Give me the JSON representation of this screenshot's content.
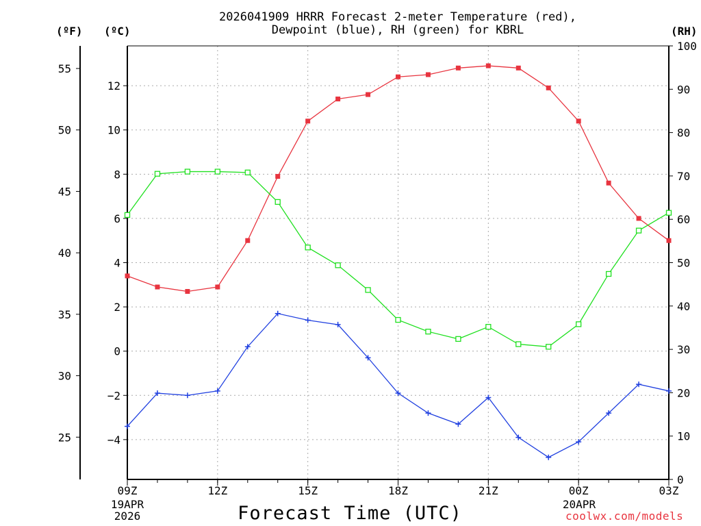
{
  "chart_data": {
    "type": "line",
    "title_line1": "2026041909 HRRR Forecast 2-meter Temperature (red),",
    "title_line2": "Dewpoint (blue), RH (green) for KBRL",
    "xlabel": "Forecast Time (UTC)",
    "credit": "coolwx.com/models",
    "unit_f": "(ºF)",
    "unit_c": "(ºC)",
    "unit_rh": "(RH)",
    "x_hours": [
      0,
      1,
      2,
      3,
      4,
      5,
      6,
      7,
      8,
      9,
      10,
      11,
      12,
      13,
      14,
      15,
      16,
      17,
      18
    ],
    "x_ticks": [
      {
        "hour": 0,
        "label": "09Z"
      },
      {
        "hour": 3,
        "label": "12Z"
      },
      {
        "hour": 6,
        "label": "15Z"
      },
      {
        "hour": 9,
        "label": "18Z"
      },
      {
        "hour": 12,
        "label": "21Z"
      },
      {
        "hour": 15,
        "label": "00Z"
      },
      {
        "hour": 18,
        "label": "03Z"
      }
    ],
    "date_start": {
      "line1": "19APR",
      "line2": "2026"
    },
    "date_mid": {
      "line1": "20APR"
    },
    "celsius_axis": {
      "min": -5.8,
      "max": 13.8,
      "ticks": [
        -4,
        -2,
        0,
        2,
        4,
        6,
        8,
        10,
        12
      ],
      "labels": [
        "−4",
        "−2",
        "0",
        "2",
        "4",
        "6",
        "8",
        "10",
        "12"
      ]
    },
    "fahrenheit_axis": {
      "ticks": [
        25,
        30,
        35,
        40,
        45,
        50,
        55
      ],
      "labels": [
        "25",
        "30",
        "35",
        "40",
        "45",
        "50",
        "55"
      ]
    },
    "rh_axis": {
      "min": 0,
      "max": 100,
      "ticks": [
        0,
        10,
        20,
        30,
        40,
        50,
        60,
        70,
        80,
        90,
        100
      ],
      "labels": [
        "0",
        "10",
        "20",
        "30",
        "40",
        "50",
        "60",
        "70",
        "80",
        "90",
        "100"
      ]
    },
    "series": [
      {
        "name": "Temperature",
        "unit": "C",
        "color": "#e8343f",
        "marker": "filled-square",
        "values": [
          3.4,
          2.9,
          2.7,
          2.9,
          5.0,
          7.9,
          10.4,
          11.4,
          11.6,
          12.4,
          12.5,
          12.8,
          12.9,
          12.8,
          11.9,
          10.4,
          7.6,
          6.0,
          5.0
        ]
      },
      {
        "name": "Dewpoint",
        "unit": "C",
        "color": "#2040e0",
        "marker": "plus",
        "values": [
          -3.4,
          -1.9,
          -2.0,
          -1.8,
          0.2,
          1.7,
          1.4,
          1.2,
          -0.3,
          -1.9,
          -2.8,
          -3.3,
          -2.1,
          -3.9,
          -4.8,
          -4.1,
          -2.8,
          -1.5,
          -1.8
        ]
      },
      {
        "name": "RH",
        "unit": "%",
        "color": "#20e020",
        "marker": "open-square",
        "values": [
          61,
          70.5,
          71,
          71,
          70.8,
          64,
          53.5,
          49.4,
          43.7,
          36.8,
          34.1,
          32.4,
          35.2,
          31.2,
          30.6,
          35.8,
          47.4,
          57.4,
          61.5
        ]
      }
    ]
  }
}
